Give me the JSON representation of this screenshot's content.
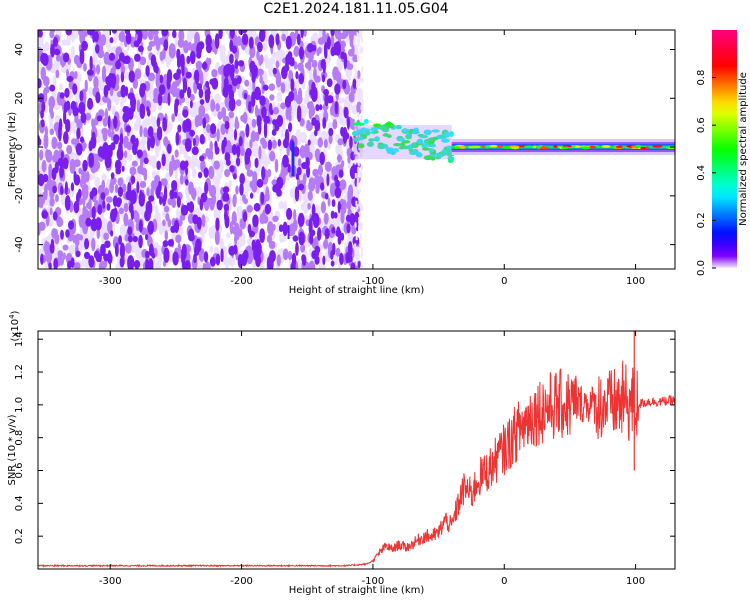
{
  "title": "C2E1.2024.181.11.05.G04",
  "chart_data": [
    {
      "type": "heatmap",
      "xlabel": "Height of straight line (km)",
      "ylabel": "Frequency (Hz)",
      "xlim": [
        -355,
        130
      ],
      "ylim": [
        -50,
        48
      ],
      "x_ticks": [
        -300,
        -200,
        -100,
        0,
        100
      ],
      "y_ticks": [
        -40,
        -20,
        0,
        20,
        40
      ],
      "colorbar": {
        "label": "Normalized spectral amplitude",
        "range": [
          0,
          1
        ],
        "ticks": [
          0.0,
          0.2,
          0.4,
          0.6,
          0.8
        ],
        "tick_labels": [
          "0.0",
          "0.2",
          "0.4",
          "0.6",
          "0.8"
        ]
      },
      "regions": [
        {
          "x_range": [
            -355,
            -110
          ],
          "f_range": [
            -50,
            48
          ],
          "amplitude": [
            0.05,
            0.15
          ],
          "pattern": "noise"
        },
        {
          "x_range": [
            -115,
            -40
          ],
          "f_center": 2,
          "f_halfwidth": 6,
          "amplitude": [
            0.3,
            0.5
          ],
          "pattern": "scintillating carrier"
        },
        {
          "x_range": [
            -40,
            130
          ],
          "f_center": 0,
          "f_halfwidth": 3,
          "amplitude": [
            0.4,
            0.9
          ],
          "pattern": "stable carrier"
        }
      ]
    },
    {
      "type": "line",
      "xlabel": "Height of straight line (km)",
      "ylabel": "SNR (10 * v/v)",
      "multiplier_label": "(x10^4)",
      "xlim": [
        -355,
        130
      ],
      "ylim": [
        0,
        1.45
      ],
      "x_ticks": [
        -300,
        -200,
        -100,
        0,
        100
      ],
      "y_ticks": [
        0.2,
        0.4,
        0.6,
        0.8,
        1.0,
        1.2,
        1.4
      ],
      "y_tick_labels": [
        "0.2",
        "0.4",
        "0.6",
        "0.8",
        "1.0",
        "1.2",
        "1.4"
      ],
      "color": "#ee3333",
      "series": [
        {
          "x": [
            -355,
            -300,
            -250,
            -200,
            -150,
            -120,
            -105,
            -100,
            -95,
            -90,
            -85,
            -80,
            -75,
            -70,
            -65,
            -60,
            -55,
            -50,
            -45,
            -40,
            -35,
            -30,
            -25,
            -20,
            -15,
            -10,
            -5,
            0,
            5,
            10,
            15,
            20,
            25,
            30,
            35,
            40,
            50,
            60,
            70,
            80,
            90,
            100,
            110,
            120,
            130
          ],
          "y": [
            0.02,
            0.02,
            0.02,
            0.02,
            0.02,
            0.02,
            0.03,
            0.05,
            0.1,
            0.14,
            0.12,
            0.15,
            0.13,
            0.15,
            0.18,
            0.2,
            0.2,
            0.22,
            0.3,
            0.26,
            0.4,
            0.5,
            0.45,
            0.55,
            0.58,
            0.62,
            0.68,
            0.73,
            0.78,
            0.84,
            0.88,
            0.93,
            0.96,
            0.98,
            0.99,
            1.0,
            1.0,
            1.01,
            1.0,
            1.0,
            1.02,
            1.0,
            1.02,
            1.02,
            1.03
          ]
        }
      ]
    }
  ]
}
